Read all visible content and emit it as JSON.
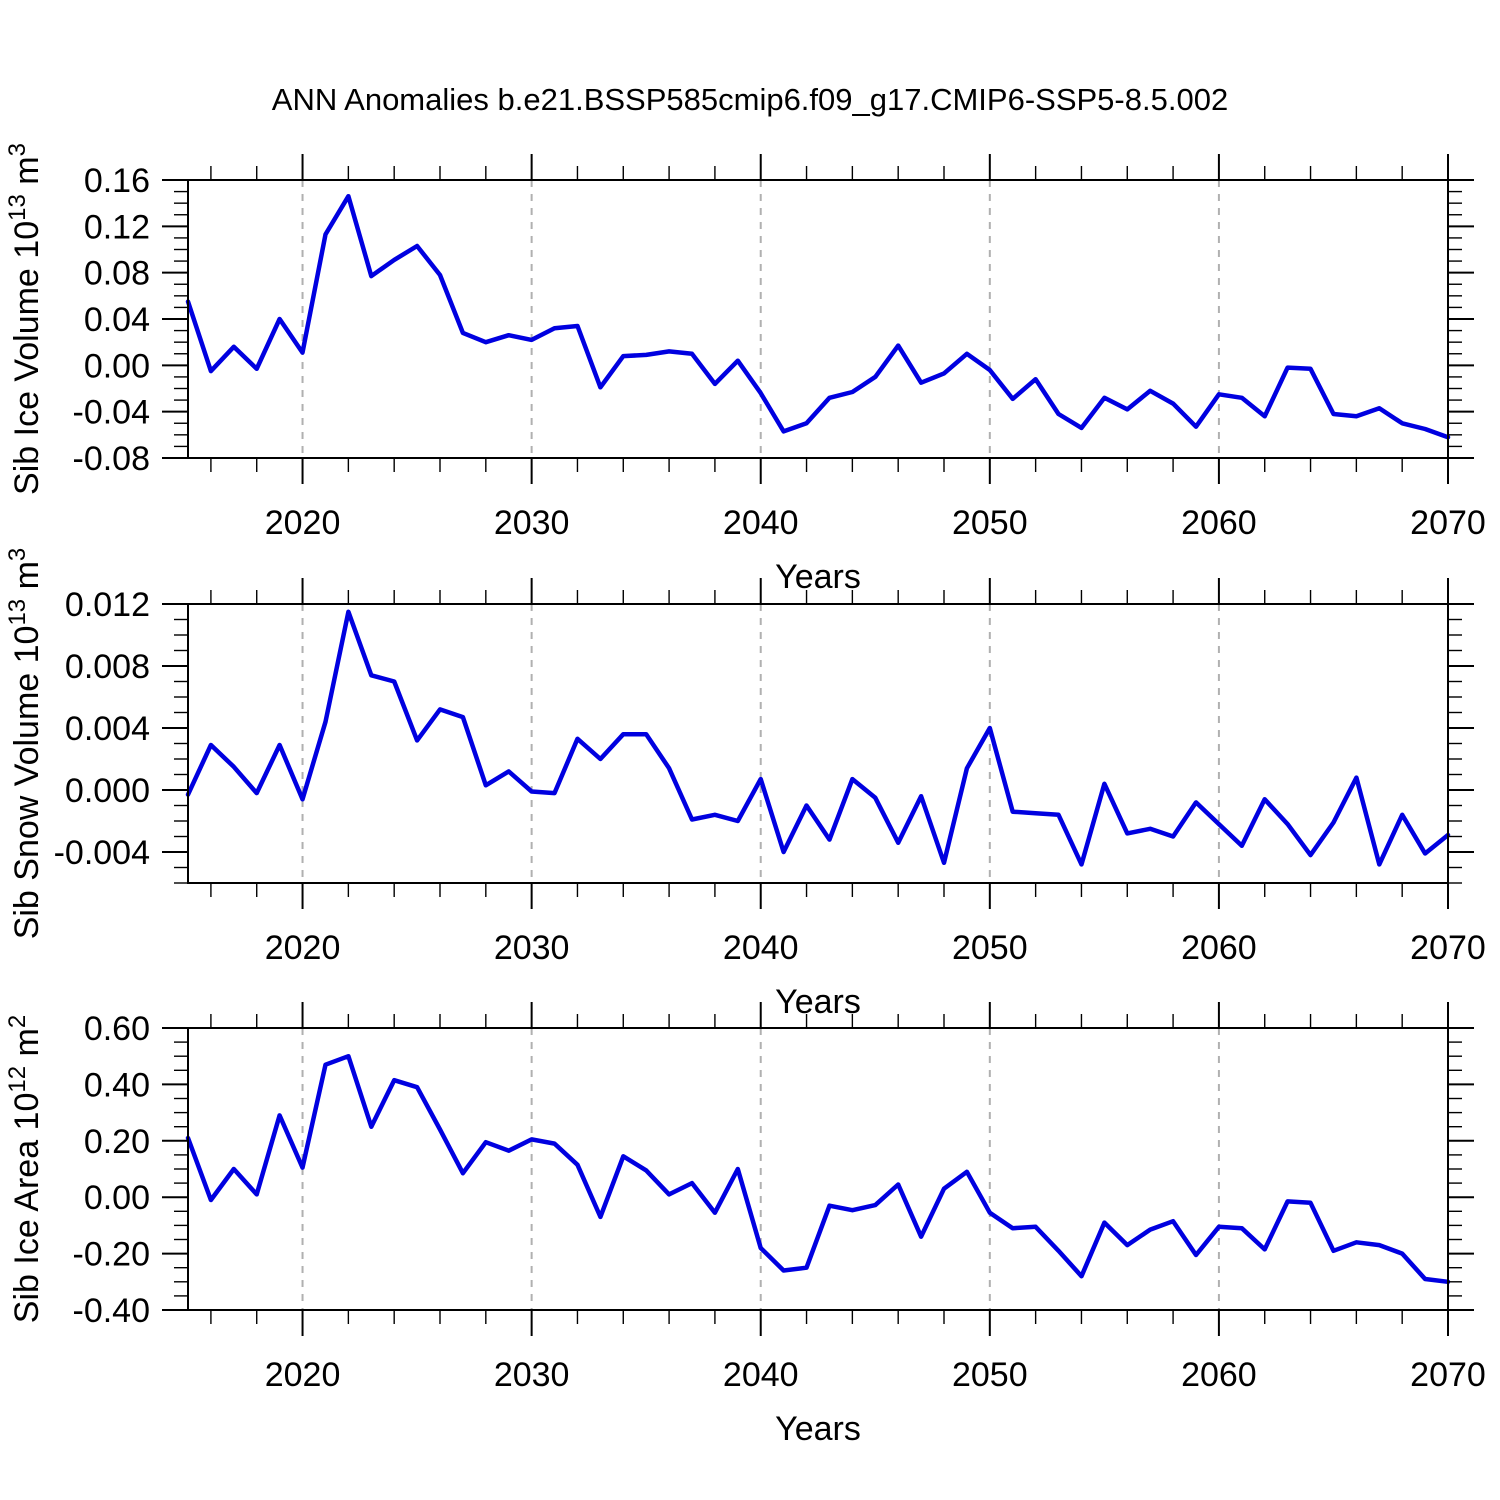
{
  "title": "ANN Anomalies b.e21.BSSP585cmip6.f09_g17.CMIP6-SSP5-8.5.002",
  "colors": {
    "line": "#0000e0",
    "grid": "#b0b0b0",
    "axis": "#000000",
    "background": "#ffffff",
    "text": "#000000"
  },
  "axes": {
    "xlabel": "Years",
    "xlim": [
      2015,
      2070
    ],
    "xticks": [
      2020,
      2030,
      2040,
      2050,
      2060,
      2070
    ],
    "xtick_labels": [
      "2020",
      "2030",
      "2040",
      "2050",
      "2060",
      "2070"
    ],
    "xminor_step": 2,
    "grid_x": [
      2020,
      2030,
      2040,
      2050,
      2060
    ],
    "grid_style": "dashed"
  },
  "chart_data": [
    {
      "type": "line",
      "name": "sib-ice-volume",
      "ylabel": "Sib Ice Volume 10^{13} m^{3}",
      "xlabel": "Years",
      "ylim": [
        -0.08,
        0.16
      ],
      "ytick_step": 0.04,
      "yminor_step": 0.01,
      "ytick_decimals": 2,
      "legend": null,
      "x": [
        2015,
        2016,
        2017,
        2018,
        2019,
        2020,
        2021,
        2022,
        2023,
        2024,
        2025,
        2026,
        2027,
        2028,
        2029,
        2030,
        2031,
        2032,
        2033,
        2034,
        2035,
        2036,
        2037,
        2038,
        2039,
        2040,
        2041,
        2042,
        2043,
        2044,
        2045,
        2046,
        2047,
        2048,
        2049,
        2050,
        2051,
        2052,
        2053,
        2054,
        2055,
        2056,
        2057,
        2058,
        2059,
        2060,
        2061,
        2062,
        2063,
        2064,
        2065,
        2066,
        2067,
        2068,
        2069,
        2070
      ],
      "values": [
        0.055,
        -0.005,
        0.016,
        -0.003,
        0.04,
        0.011,
        0.113,
        0.146,
        0.077,
        0.091,
        0.103,
        0.078,
        0.028,
        0.02,
        0.026,
        0.022,
        0.032,
        0.034,
        -0.019,
        0.008,
        0.009,
        0.012,
        0.01,
        -0.016,
        0.004,
        -0.024,
        -0.057,
        -0.05,
        -0.028,
        -0.023,
        -0.01,
        0.017,
        -0.015,
        -0.007,
        0.01,
        -0.004,
        -0.029,
        -0.012,
        -0.042,
        -0.054,
        -0.028,
        -0.038,
        -0.022,
        -0.033,
        -0.053,
        -0.025,
        -0.028,
        -0.044,
        -0.002,
        -0.003,
        -0.042,
        -0.044,
        -0.037,
        -0.05,
        -0.055,
        -0.062
      ]
    },
    {
      "type": "line",
      "name": "sib-snow-volume",
      "ylabel": "Sib Snow Volume 10^{13} m^{3}",
      "xlabel": "Years",
      "ylim": [
        -0.006,
        0.012
      ],
      "ytick_step": 0.004,
      "yminor_step": 0.001,
      "ytick_decimals": 3,
      "legend": null,
      "x": [
        2015,
        2016,
        2017,
        2018,
        2019,
        2020,
        2021,
        2022,
        2023,
        2024,
        2025,
        2026,
        2027,
        2028,
        2029,
        2030,
        2031,
        2032,
        2033,
        2034,
        2035,
        2036,
        2037,
        2038,
        2039,
        2040,
        2041,
        2042,
        2043,
        2044,
        2045,
        2046,
        2047,
        2048,
        2049,
        2050,
        2051,
        2052,
        2053,
        2054,
        2055,
        2056,
        2057,
        2058,
        2059,
        2060,
        2061,
        2062,
        2063,
        2064,
        2065,
        2066,
        2067,
        2068,
        2069,
        2070
      ],
      "values": [
        -0.0003,
        0.0029,
        0.0015,
        -0.0002,
        0.0029,
        -0.0006,
        0.0044,
        0.0115,
        0.0074,
        0.007,
        0.0032,
        0.0052,
        0.0047,
        0.0003,
        0.0012,
        -0.0001,
        -0.0002,
        0.0033,
        0.002,
        0.0036,
        0.0036,
        0.0014,
        -0.0019,
        -0.0016,
        -0.002,
        0.0007,
        -0.004,
        -0.001,
        -0.0032,
        0.0007,
        -0.0005,
        -0.0034,
        -0.0004,
        -0.0047,
        0.0014,
        0.004,
        -0.0014,
        -0.0015,
        -0.0016,
        -0.0048,
        0.0004,
        -0.0028,
        -0.0025,
        -0.003,
        -0.0008,
        -0.0022,
        -0.0036,
        -0.0006,
        -0.0022,
        -0.0042,
        -0.0021,
        0.0008,
        -0.0048,
        -0.0016,
        -0.0041,
        -0.0029
      ]
    },
    {
      "type": "line",
      "name": "sib-ice-area",
      "ylabel": "Sib Ice Area 10^{12} m^{2}",
      "xlabel": "Years",
      "ylim": [
        -0.4,
        0.6
      ],
      "ytick_step": 0.2,
      "yminor_step": 0.05,
      "ytick_decimals": 2,
      "legend": null,
      "x": [
        2015,
        2016,
        2017,
        2018,
        2019,
        2020,
        2021,
        2022,
        2023,
        2024,
        2025,
        2026,
        2027,
        2028,
        2029,
        2030,
        2031,
        2032,
        2033,
        2034,
        2035,
        2036,
        2037,
        2038,
        2039,
        2040,
        2041,
        2042,
        2043,
        2044,
        2045,
        2046,
        2047,
        2048,
        2049,
        2050,
        2051,
        2052,
        2053,
        2054,
        2055,
        2056,
        2057,
        2058,
        2059,
        2060,
        2061,
        2062,
        2063,
        2064,
        2065,
        2066,
        2067,
        2068,
        2069,
        2070
      ],
      "values": [
        0.21,
        -0.01,
        0.1,
        0.01,
        0.29,
        0.105,
        0.47,
        0.5,
        0.25,
        0.415,
        0.39,
        0.24,
        0.085,
        0.195,
        0.165,
        0.205,
        0.19,
        0.115,
        -0.07,
        0.145,
        0.095,
        0.01,
        0.05,
        -0.055,
        0.1,
        -0.18,
        -0.26,
        -0.25,
        -0.03,
        -0.046,
        -0.028,
        0.045,
        -0.14,
        0.03,
        0.09,
        -0.055,
        -0.11,
        -0.105,
        -0.19,
        -0.28,
        -0.09,
        -0.17,
        -0.115,
        -0.085,
        -0.205,
        -0.105,
        -0.11,
        -0.185,
        -0.015,
        -0.02,
        -0.19,
        -0.16,
        -0.17,
        -0.2,
        -0.29,
        -0.3
      ]
    }
  ]
}
